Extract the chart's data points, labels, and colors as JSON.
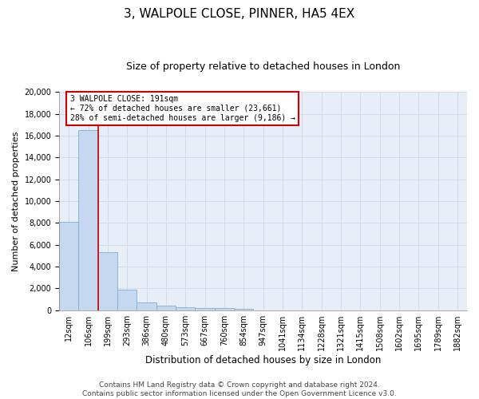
{
  "title": "3, WALPOLE CLOSE, PINNER, HA5 4EX",
  "subtitle": "Size of property relative to detached houses in London",
  "xlabel": "Distribution of detached houses by size in London",
  "ylabel": "Number of detached properties",
  "categories": [
    "12sqm",
    "106sqm",
    "199sqm",
    "293sqm",
    "386sqm",
    "480sqm",
    "573sqm",
    "667sqm",
    "760sqm",
    "854sqm",
    "947sqm",
    "1041sqm",
    "1134sqm",
    "1228sqm",
    "1321sqm",
    "1415sqm",
    "1508sqm",
    "1602sqm",
    "1695sqm",
    "1789sqm",
    "1882sqm"
  ],
  "bar_heights": [
    8100,
    16500,
    5300,
    1850,
    700,
    380,
    280,
    220,
    180,
    130,
    0,
    0,
    0,
    0,
    0,
    0,
    0,
    0,
    0,
    0,
    0
  ],
  "bar_color": "#c5d8f0",
  "bar_edge_color": "#7bafd4",
  "vline_color": "#cc0000",
  "annotation_text": "3 WALPOLE CLOSE: 191sqm\n← 72% of detached houses are smaller (23,661)\n28% of semi-detached houses are larger (9,186) →",
  "annotation_box_color": "#cc0000",
  "ylim": [
    0,
    20000
  ],
  "yticks": [
    0,
    2000,
    4000,
    6000,
    8000,
    10000,
    12000,
    14000,
    16000,
    18000,
    20000
  ],
  "grid_color": "#d0d8e8",
  "background_color": "#e8eef8",
  "footer": "Contains HM Land Registry data © Crown copyright and database right 2024.\nContains public sector information licensed under the Open Government Licence v3.0.",
  "title_fontsize": 11,
  "subtitle_fontsize": 9,
  "xlabel_fontsize": 8.5,
  "ylabel_fontsize": 8,
  "tick_fontsize": 7,
  "footer_fontsize": 6.5
}
